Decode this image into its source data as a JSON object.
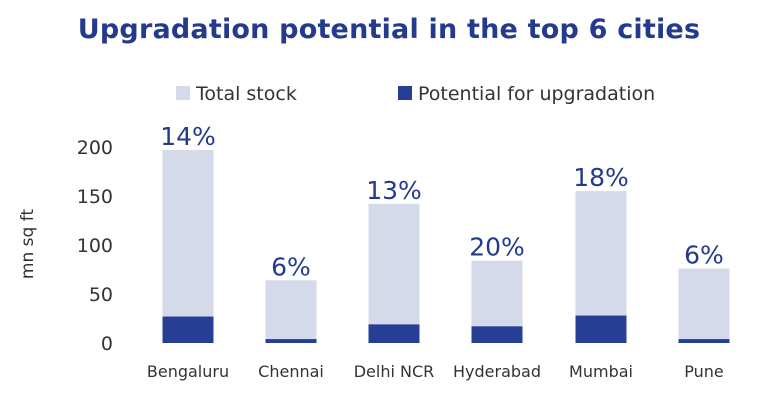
{
  "chart_data": {
    "type": "bar",
    "title": "Upgradation potential in the top 6 cities",
    "ylabel": "mn sq ft",
    "xlabel": "",
    "ylim": [
      0,
      200
    ],
    "yticks": [
      0,
      50,
      100,
      150,
      200
    ],
    "categories": [
      "Bengaluru",
      "Chennai",
      "Delhi NCR",
      "Hyderabad",
      "Mumbai",
      "Pune"
    ],
    "series": [
      {
        "name": "Total stock",
        "values": [
          197,
          64,
          142,
          84,
          155,
          76
        ],
        "color": "#d4dae9"
      },
      {
        "name": "Potential for upgradation",
        "values": [
          27,
          4,
          19,
          17,
          28,
          4
        ],
        "color": "#263f94"
      }
    ],
    "labels": [
      "14%",
      "6%",
      "13%",
      "20%",
      "18%",
      "6%"
    ],
    "legend_position": "top",
    "grid": false,
    "stacking": "overlay"
  }
}
